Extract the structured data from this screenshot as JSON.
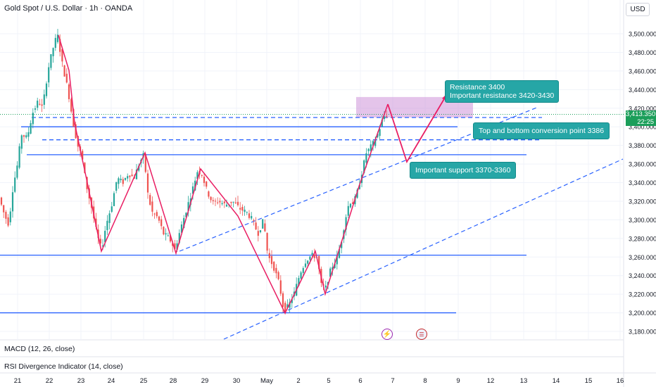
{
  "header": {
    "symbol": "Gold Spot / U.S. Dollar · 1h · OANDA",
    "currency": "USD"
  },
  "price_badge": {
    "price": "3,413.350",
    "countdown": "22:25",
    "color": "#1b9e5a"
  },
  "callouts": {
    "resistance_line1": "Resistance 3400",
    "resistance_line2": "Important resistance 3420-3430",
    "conversion": "Top and bottom conversion point 3386",
    "support": "Important support 3370-3360"
  },
  "indicators": {
    "macd": "MACD (12, 26, close)",
    "rsi": "RSI Divergence Indicator (14, close)"
  },
  "events": {
    "first_icon": "lightning-icon",
    "second_icon": "us-flag-icon"
  },
  "colors": {
    "up": "#26a69a",
    "down": "#ef5350",
    "trend_line": "#2962ff",
    "projection": "#e91e63",
    "resistance_zone": "#ce93d8",
    "callout": "#26a6a6"
  },
  "chart_data": {
    "type": "candlestick",
    "symbol": "Gold Spot / U.S. Dollar",
    "interval": "1h",
    "source": "OANDA",
    "ylim": [
      3170,
      3525
    ],
    "y_ticks": [
      "3,500.000",
      "3,480.000",
      "3,460.000",
      "3,440.000",
      "3,420.000",
      "3,400.000",
      "3,380.000",
      "3,360.000",
      "3,340.000",
      "3,320.000",
      "3,300.000",
      "3,280.000",
      "3,260.000",
      "3,240.000",
      "3,220.000",
      "3,200.000",
      "3,180.000"
    ],
    "x_ticks": [
      "21",
      "22",
      "23",
      "24",
      "25",
      "28",
      "29",
      "30",
      "May",
      "2",
      "5",
      "6",
      "7",
      "8",
      "9",
      "12",
      "13",
      "14",
      "15",
      "16"
    ],
    "price_path": [
      [
        0,
        3325
      ],
      [
        8,
        3305
      ],
      [
        14,
        3295
      ],
      [
        20,
        3335
      ],
      [
        26,
        3358
      ],
      [
        32,
        3392
      ],
      [
        40,
        3388
      ],
      [
        48,
        3415
      ],
      [
        56,
        3428
      ],
      [
        62,
        3420
      ],
      [
        70,
        3462
      ],
      [
        76,
        3482
      ],
      [
        83,
        3500
      ],
      [
        90,
        3468
      ],
      [
        98,
        3440
      ],
      [
        106,
        3402
      ],
      [
        112,
        3380
      ],
      [
        118,
        3368
      ],
      [
        124,
        3338
      ],
      [
        132,
        3312
      ],
      [
        140,
        3282
      ],
      [
        146,
        3268
      ],
      [
        152,
        3294
      ],
      [
        160,
        3315
      ],
      [
        168,
        3345
      ],
      [
        176,
        3340
      ],
      [
        184,
        3350
      ],
      [
        192,
        3345
      ],
      [
        200,
        3362
      ],
      [
        206,
        3370
      ],
      [
        212,
        3325
      ],
      [
        218,
        3308
      ],
      [
        226,
        3302
      ],
      [
        234,
        3285
      ],
      [
        242,
        3280
      ],
      [
        250,
        3268
      ],
      [
        258,
        3290
      ],
      [
        266,
        3310
      ],
      [
        274,
        3330
      ],
      [
        282,
        3352
      ],
      [
        288,
        3350
      ],
      [
        296,
        3330
      ],
      [
        304,
        3318
      ],
      [
        312,
        3320
      ],
      [
        322,
        3316
      ],
      [
        332,
        3320
      ],
      [
        342,
        3312
      ],
      [
        352,
        3308
      ],
      [
        360,
        3300
      ],
      [
        368,
        3285
      ],
      [
        376,
        3300
      ],
      [
        382,
        3262
      ],
      [
        390,
        3250
      ],
      [
        398,
        3232
      ],
      [
        405,
        3202
      ],
      [
        412,
        3208
      ],
      [
        420,
        3222
      ],
      [
        428,
        3243
      ],
      [
        436,
        3256
      ],
      [
        444,
        3262
      ],
      [
        452,
        3260
      ],
      [
        458,
        3230
      ],
      [
        464,
        3226
      ],
      [
        472,
        3248
      ],
      [
        480,
        3258
      ],
      [
        486,
        3275
      ],
      [
        492,
        3300
      ],
      [
        498,
        3320
      ],
      [
        504,
        3318
      ],
      [
        510,
        3332
      ],
      [
        516,
        3352
      ],
      [
        522,
        3372
      ],
      [
        528,
        3378
      ],
      [
        534,
        3385
      ],
      [
        540,
        3396
      ],
      [
        546,
        3410
      ],
      [
        550,
        3413
      ]
    ],
    "horizontal_levels": [
      3410,
      3400,
      3386,
      3370,
      3262,
      3200
    ],
    "resistance_zone": [
      3410,
      3432
    ],
    "projection_path_values": [
      3425,
      3362,
      3430
    ],
    "current_price": 3413.35
  }
}
